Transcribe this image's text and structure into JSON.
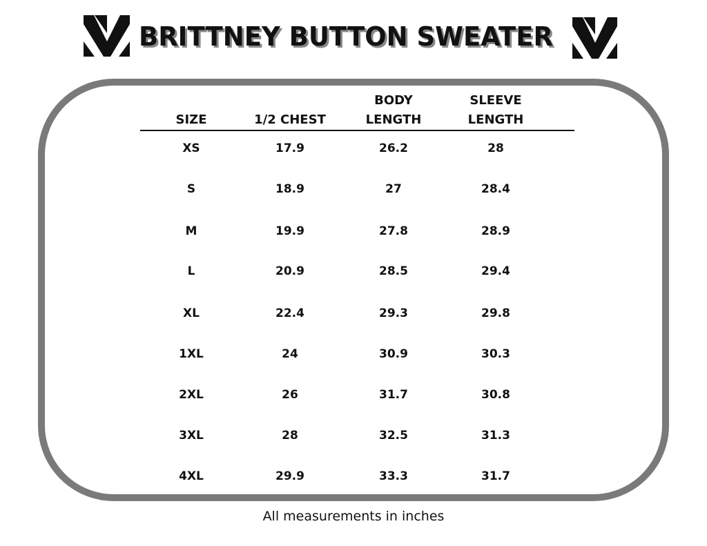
{
  "header": {
    "title": "BRITTNEY BUTTON SWEATER"
  },
  "table": {
    "columns": [
      "SIZE",
      "1/2 CHEST",
      "BODY LENGTH",
      "SLEEVE LENGTH"
    ],
    "rows": [
      [
        "XS",
        17.9,
        26.2,
        28
      ],
      [
        "S",
        18.9,
        27,
        28.4
      ],
      [
        "M",
        19.9,
        27.8,
        28.9
      ],
      [
        "L",
        20.9,
        28.5,
        29.4
      ],
      [
        "XL",
        22.4,
        29.3,
        29.8
      ],
      [
        "1XL",
        24,
        30.9,
        30.3
      ],
      [
        "2XL",
        26,
        31.7,
        30.8
      ],
      [
        "3XL",
        28,
        32.5,
        31.3
      ],
      [
        "4XL",
        29.9,
        33.3,
        31.7
      ]
    ]
  },
  "footer": {
    "note": "All measurements in inches"
  }
}
